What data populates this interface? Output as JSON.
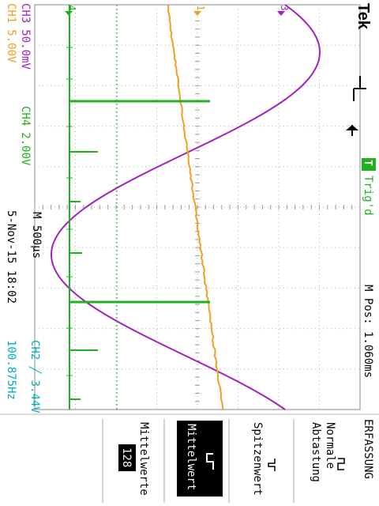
{
  "brand": "Tek",
  "trigger_state": {
    "badge": "T",
    "label": "Trig'd"
  },
  "m_pos": "M Pos: 1.060ms",
  "channels": [
    {
      "label": "CH1",
      "scale": "5.00V",
      "color": "#f0a020"
    },
    {
      "label": "CH3",
      "scale": "50.0mV",
      "color": "#a020c0"
    },
    {
      "label": "CH4",
      "scale": "2.00V",
      "color": "#20b020"
    }
  ],
  "timebase": "M 500µs",
  "datetime": "5-Nov-15 18:02",
  "trigger_info": {
    "source": "CH2 ╱ 3.44V",
    "freq": "100.875Hz",
    "color": "#00b0c0"
  },
  "ch_markers": {
    "ch4": "4",
    "ch1": "1",
    "ch3": "3"
  },
  "menu": {
    "title": "ERFASSUNG",
    "items": [
      {
        "label": "Normale Abtastung",
        "lines": [
          "Normale",
          "Abtastung"
        ],
        "selected": false
      },
      {
        "label": "Spitzenwert",
        "lines": [
          "Spitzenwert"
        ],
        "selected": false
      },
      {
        "label": "Mittelwert",
        "lines": [
          "Mittelwert"
        ],
        "selected": true
      }
    ],
    "avg_label": "Mittelwerte",
    "avg_value": "128"
  },
  "colors": {
    "grid": "#909090",
    "text": "#000000"
  }
}
